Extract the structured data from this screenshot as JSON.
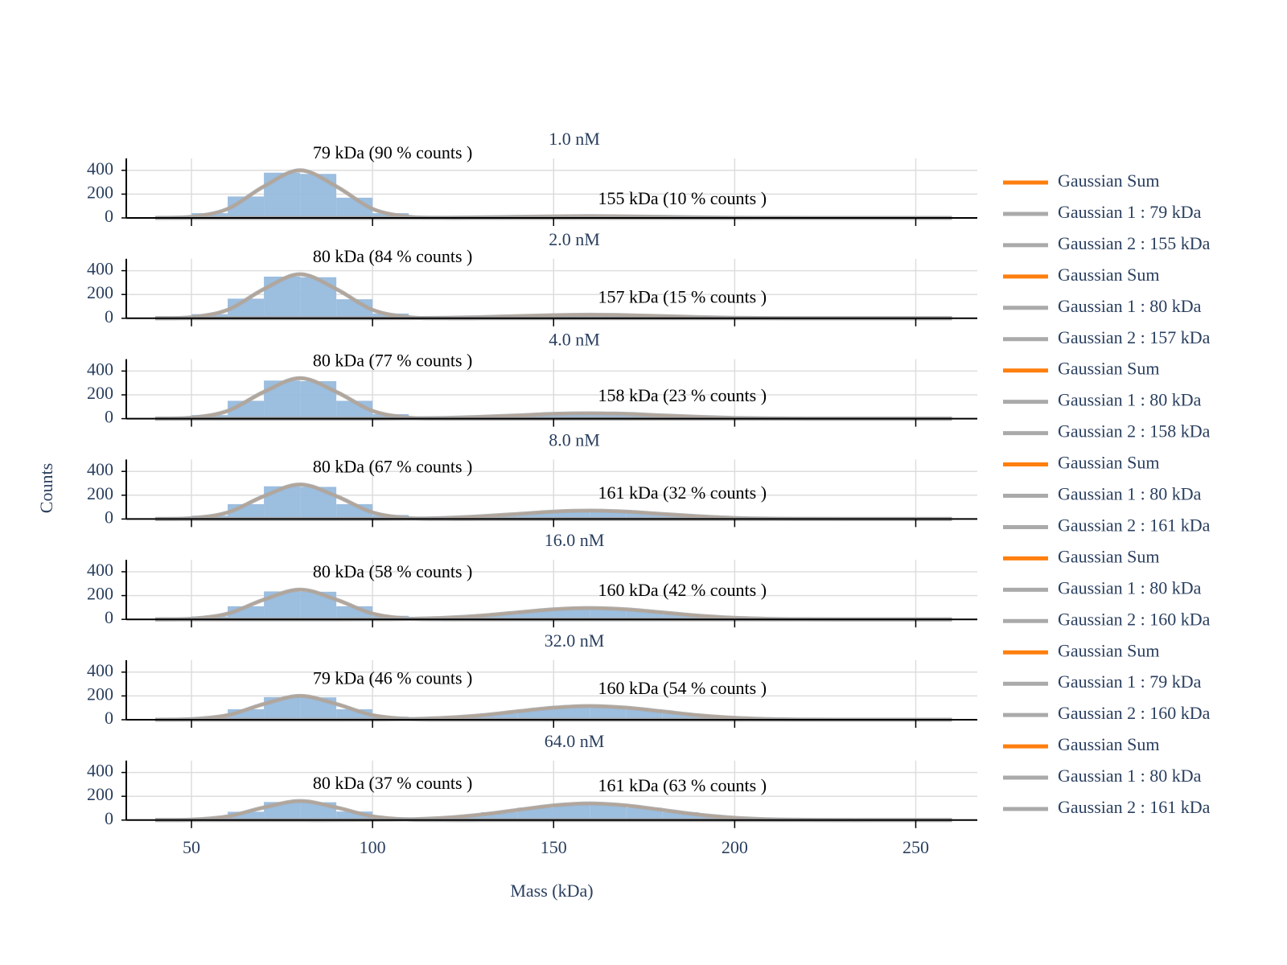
{
  "chart_data": [
    {
      "type": "histogram",
      "title": "1.0 nM",
      "color": "#97bbdd",
      "bins": [
        40,
        50,
        60,
        70,
        80,
        90,
        100,
        110,
        120,
        130,
        140,
        150,
        160,
        170,
        180,
        190,
        200,
        210,
        220,
        230,
        240,
        250,
        260
      ],
      "counts": [
        5,
        40,
        180,
        380,
        370,
        170,
        40,
        12,
        8,
        7,
        10,
        14,
        15,
        12,
        8,
        4,
        2,
        1,
        1,
        0,
        0,
        0
      ],
      "x": [
        40,
        50,
        60,
        70,
        80,
        90,
        100,
        110,
        120,
        130,
        140,
        150,
        160,
        170,
        180,
        190,
        200,
        210,
        220,
        230,
        240,
        250,
        260
      ],
      "series": [
        {
          "name": "Gaussian Sum",
          "color": "#ff7f0e",
          "values": [
            0,
            10,
            76,
            265,
            400,
            265,
            76,
            11,
            2,
            5,
            9,
            13,
            15,
            13,
            9,
            5,
            2,
            1,
            0,
            0,
            0,
            0,
            0
          ]
        },
        {
          "name": "Gaussian 1 : 79 kDa",
          "color": "#aaaaaa",
          "values": [
            0,
            10,
            76,
            265,
            400,
            265,
            76,
            10,
            0,
            0,
            0,
            0,
            0,
            0,
            0,
            0,
            0,
            0,
            0,
            0,
            0,
            0,
            0
          ]
        },
        {
          "name": "Gaussian 2 : 155 kDa",
          "color": "#aaaaaa",
          "values": [
            0,
            0,
            0,
            0,
            0,
            0,
            0,
            1,
            2,
            5,
            9,
            13,
            15,
            13,
            9,
            5,
            2,
            1,
            0,
            0,
            0,
            0,
            0
          ]
        }
      ],
      "annotations": [
        "79 kDa (90 % counts )",
        "155 kDa (10 % counts )"
      ],
      "xlim": [
        32,
        267
      ],
      "xticks": [
        50,
        100,
        150,
        200,
        250
      ],
      "ylim": [
        0,
        500
      ],
      "yticks": [
        0,
        200,
        400
      ],
      "grid": true
    },
    {
      "type": "histogram",
      "title": "2.0 nM",
      "color": "#97bbdd",
      "bins": [
        40,
        50,
        60,
        70,
        80,
        90,
        100,
        110,
        120,
        130,
        140,
        150,
        160,
        170,
        180,
        190,
        200,
        210,
        220,
        230,
        240,
        250,
        260
      ],
      "counts": [
        4,
        35,
        165,
        350,
        345,
        160,
        40,
        12,
        9,
        14,
        22,
        29,
        28,
        22,
        14,
        7,
        3,
        1,
        1,
        0,
        0,
        0
      ],
      "x": [
        40,
        50,
        60,
        70,
        80,
        90,
        100,
        110,
        120,
        130,
        140,
        150,
        160,
        170,
        180,
        190,
        200,
        210,
        220,
        230,
        240,
        250,
        260
      ],
      "series": [
        {
          "name": "Gaussian Sum",
          "color": "#ff7f0e",
          "values": [
            0,
            9,
            71,
            245,
            370,
            245,
            71,
            10,
            4,
            10,
            18,
            26,
            30,
            26,
            18,
            10,
            4,
            1,
            0,
            0,
            0,
            0,
            0
          ]
        },
        {
          "name": "Gaussian 1 : 80 kDa",
          "color": "#aaaaaa",
          "values": [
            0,
            9,
            71,
            245,
            370,
            245,
            71,
            9,
            0,
            0,
            0,
            0,
            0,
            0,
            0,
            0,
            0,
            0,
            0,
            0,
            0,
            0,
            0
          ]
        },
        {
          "name": "Gaussian 2 : 157 kDa",
          "color": "#aaaaaa",
          "values": [
            0,
            0,
            0,
            0,
            0,
            0,
            0,
            1,
            4,
            10,
            18,
            26,
            30,
            26,
            18,
            10,
            4,
            1,
            0,
            0,
            0,
            0,
            0
          ]
        }
      ],
      "annotations": [
        "80 kDa (84 % counts )",
        "157 kDa (15 % counts )"
      ],
      "xlim": [
        32,
        267
      ],
      "xticks": [
        50,
        100,
        150,
        200,
        250
      ],
      "ylim": [
        0,
        500
      ],
      "yticks": [
        0,
        200,
        400
      ],
      "grid": true
    },
    {
      "type": "histogram",
      "title": "4.0 nM",
      "color": "#97bbdd",
      "bins": [
        40,
        50,
        60,
        70,
        80,
        90,
        100,
        110,
        120,
        130,
        140,
        150,
        160,
        170,
        180,
        190,
        200,
        210,
        220,
        230,
        240,
        250,
        260
      ],
      "counts": [
        3,
        30,
        150,
        320,
        315,
        150,
        38,
        11,
        11,
        21,
        34,
        43,
        44,
        34,
        21,
        10,
        4,
        2,
        1,
        0,
        0,
        0
      ],
      "x": [
        40,
        50,
        60,
        70,
        80,
        90,
        100,
        110,
        120,
        130,
        140,
        150,
        160,
        170,
        180,
        190,
        200,
        210,
        220,
        230,
        240,
        250,
        260
      ],
      "series": [
        {
          "name": "Gaussian Sum",
          "color": "#ff7f0e",
          "values": [
            0,
            8,
            65,
            225,
            340,
            225,
            65,
            10,
            6,
            15,
            27,
            40,
            45,
            40,
            27,
            15,
            6,
            2,
            0,
            0,
            0,
            0,
            0
          ]
        },
        {
          "name": "Gaussian 1 : 80 kDa",
          "color": "#aaaaaa",
          "values": [
            0,
            8,
            65,
            225,
            340,
            225,
            65,
            8,
            0,
            0,
            0,
            0,
            0,
            0,
            0,
            0,
            0,
            0,
            0,
            0,
            0,
            0,
            0
          ]
        },
        {
          "name": "Gaussian 2 : 158 kDa",
          "color": "#aaaaaa",
          "values": [
            0,
            0,
            0,
            0,
            0,
            0,
            0,
            2,
            6,
            15,
            27,
            40,
            45,
            40,
            27,
            15,
            6,
            2,
            0,
            0,
            0,
            0,
            0
          ]
        }
      ],
      "annotations": [
        "80 kDa (77 % counts )",
        "158 kDa (23 % counts )"
      ],
      "xlim": [
        32,
        267
      ],
      "xticks": [
        50,
        100,
        150,
        200,
        250
      ],
      "ylim": [
        0,
        500
      ],
      "yticks": [
        0,
        200,
        400
      ],
      "grid": true
    },
    {
      "type": "histogram",
      "title": "8.0 nM",
      "color": "#97bbdd",
      "ylabel": "Counts",
      "bins": [
        40,
        50,
        60,
        70,
        80,
        90,
        100,
        110,
        120,
        130,
        140,
        150,
        160,
        170,
        180,
        190,
        200,
        210,
        220,
        230,
        240,
        250,
        260
      ],
      "counts": [
        3,
        28,
        125,
        275,
        270,
        125,
        34,
        10,
        16,
        33,
        52,
        67,
        67,
        52,
        32,
        16,
        6,
        2,
        1,
        0,
        0,
        0
      ],
      "x": [
        40,
        50,
        60,
        70,
        80,
        90,
        100,
        110,
        120,
        130,
        140,
        150,
        160,
        170,
        180,
        190,
        200,
        210,
        220,
        230,
        240,
        250,
        260
      ],
      "series": [
        {
          "name": "Gaussian Sum",
          "color": "#ff7f0e",
          "values": [
            0,
            7,
            55,
            192,
            290,
            192,
            56,
            10,
            9,
            23,
            42,
            62,
            70,
            62,
            42,
            23,
            9,
            3,
            1,
            0,
            0,
            0,
            0
          ]
        },
        {
          "name": "Gaussian 1 : 80 kDa",
          "color": "#aaaaaa",
          "values": [
            0,
            7,
            55,
            192,
            290,
            192,
            55,
            7,
            0,
            0,
            0,
            0,
            0,
            0,
            0,
            0,
            0,
            0,
            0,
            0,
            0,
            0,
            0
          ]
        },
        {
          "name": "Gaussian 2 : 161 kDa",
          "color": "#aaaaaa",
          "values": [
            0,
            0,
            0,
            0,
            0,
            0,
            1,
            3,
            9,
            23,
            42,
            62,
            70,
            62,
            42,
            23,
            9,
            3,
            1,
            0,
            0,
            0,
            0
          ]
        }
      ],
      "annotations": [
        "80 kDa (67 % counts )",
        "161 kDa (32 % counts )"
      ],
      "xlim": [
        32,
        267
      ],
      "xticks": [
        50,
        100,
        150,
        200,
        250
      ],
      "ylim": [
        0,
        500
      ],
      "yticks": [
        0,
        200,
        400
      ],
      "grid": true
    },
    {
      "type": "histogram",
      "title": "16.0 nM",
      "color": "#97bbdd",
      "bins": [
        40,
        50,
        60,
        70,
        80,
        90,
        100,
        110,
        120,
        130,
        140,
        150,
        160,
        170,
        180,
        190,
        200,
        210,
        220,
        230,
        240,
        250,
        260
      ],
      "counts": [
        2,
        25,
        110,
        235,
        232,
        110,
        30,
        11,
        22,
        44,
        71,
        90,
        90,
        71,
        44,
        22,
        8,
        3,
        1,
        0,
        0,
        0
      ],
      "x": [
        40,
        50,
        60,
        70,
        80,
        90,
        100,
        110,
        120,
        130,
        140,
        150,
        160,
        170,
        180,
        190,
        200,
        210,
        220,
        230,
        240,
        250,
        260
      ],
      "series": [
        {
          "name": "Gaussian Sum",
          "color": "#ff7f0e",
          "values": [
            0,
            6,
            48,
            166,
            250,
            166,
            49,
            10,
            13,
            31,
            58,
            84,
            95,
            84,
            58,
            31,
            13,
            4,
            1,
            0,
            0,
            0,
            0
          ]
        },
        {
          "name": "Gaussian 1 : 80 kDa",
          "color": "#aaaaaa",
          "values": [
            0,
            6,
            48,
            166,
            250,
            166,
            48,
            6,
            0,
            0,
            0,
            0,
            0,
            0,
            0,
            0,
            0,
            0,
            0,
            0,
            0,
            0,
            0
          ]
        },
        {
          "name": "Gaussian 2 : 160 kDa",
          "color": "#aaaaaa",
          "values": [
            0,
            0,
            0,
            0,
            0,
            0,
            1,
            4,
            13,
            31,
            58,
            84,
            95,
            84,
            58,
            31,
            13,
            4,
            1,
            0,
            0,
            0,
            0
          ]
        }
      ],
      "annotations": [
        "80 kDa (58 % counts )",
        "160 kDa (42 % counts )"
      ],
      "xlim": [
        32,
        267
      ],
      "xticks": [
        50,
        100,
        150,
        200,
        250
      ],
      "ylim": [
        0,
        500
      ],
      "yticks": [
        0,
        200,
        400
      ],
      "grid": true
    },
    {
      "type": "histogram",
      "title": "32.0 nM",
      "color": "#97bbdd",
      "bins": [
        40,
        50,
        60,
        70,
        80,
        90,
        100,
        110,
        120,
        130,
        140,
        150,
        160,
        170,
        180,
        190,
        200,
        210,
        220,
        230,
        240,
        250,
        260
      ],
      "counts": [
        2,
        20,
        88,
        190,
        188,
        88,
        26,
        13,
        27,
        54,
        86,
        108,
        108,
        86,
        54,
        27,
        10,
        4,
        1,
        0,
        0,
        0
      ],
      "x": [
        40,
        50,
        60,
        70,
        80,
        90,
        100,
        110,
        120,
        130,
        140,
        150,
        160,
        170,
        180,
        190,
        200,
        210,
        220,
        230,
        240,
        250,
        260
      ],
      "series": [
        {
          "name": "Gaussian Sum",
          "color": "#ff7f0e",
          "values": [
            0,
            5,
            38,
            132,
            200,
            132,
            39,
            10,
            16,
            37,
            70,
            101,
            115,
            101,
            70,
            37,
            16,
            5,
            1,
            0,
            0,
            0,
            0
          ]
        },
        {
          "name": "Gaussian 1 : 79 kDa",
          "color": "#aaaaaa",
          "values": [
            0,
            5,
            38,
            132,
            200,
            132,
            38,
            5,
            0,
            0,
            0,
            0,
            0,
            0,
            0,
            0,
            0,
            0,
            0,
            0,
            0,
            0,
            0
          ]
        },
        {
          "name": "Gaussian 2 : 160 kDa",
          "color": "#aaaaaa",
          "values": [
            0,
            0,
            0,
            0,
            0,
            0,
            1,
            5,
            16,
            37,
            70,
            101,
            115,
            101,
            70,
            37,
            16,
            5,
            1,
            0,
            0,
            0,
            0
          ]
        }
      ],
      "annotations": [
        "79 kDa (46 % counts )",
        "160 kDa (54 % counts )"
      ],
      "xlim": [
        32,
        267
      ],
      "xticks": [
        50,
        100,
        150,
        200,
        250
      ],
      "ylim": [
        0,
        500
      ],
      "yticks": [
        0,
        200,
        400
      ],
      "grid": true
    },
    {
      "type": "histogram",
      "title": "64.0 nM",
      "color": "#97bbdd",
      "xlabel": "Mass (kDa)",
      "bins": [
        40,
        50,
        60,
        70,
        80,
        90,
        100,
        110,
        120,
        130,
        140,
        150,
        160,
        170,
        180,
        190,
        200,
        210,
        220,
        230,
        240,
        250,
        260
      ],
      "counts": [
        2,
        16,
        70,
        152,
        150,
        72,
        24,
        14,
        32,
        66,
        104,
        132,
        132,
        104,
        66,
        32,
        12,
        4,
        1,
        0,
        0,
        0
      ],
      "x": [
        40,
        50,
        60,
        70,
        80,
        90,
        100,
        110,
        120,
        130,
        140,
        150,
        160,
        170,
        180,
        190,
        200,
        210,
        220,
        230,
        240,
        250,
        260
      ],
      "series": [
        {
          "name": "Gaussian Sum",
          "color": "#ff7f0e",
          "values": [
            0,
            4,
            31,
            106,
            160,
            106,
            33,
            10,
            19,
            46,
            85,
            123,
            140,
            123,
            85,
            46,
            19,
            6,
            2,
            0,
            0,
            0,
            0
          ]
        },
        {
          "name": "Gaussian 1 : 80 kDa",
          "color": "#aaaaaa",
          "values": [
            0,
            4,
            31,
            106,
            160,
            106,
            31,
            4,
            0,
            0,
            0,
            0,
            0,
            0,
            0,
            0,
            0,
            0,
            0,
            0,
            0,
            0,
            0
          ]
        },
        {
          "name": "Gaussian 2 : 161 kDa",
          "color": "#aaaaaa",
          "values": [
            0,
            0,
            0,
            0,
            0,
            0,
            2,
            6,
            19,
            46,
            85,
            123,
            140,
            123,
            85,
            46,
            19,
            6,
            2,
            0,
            0,
            0,
            0
          ]
        }
      ],
      "annotations": [
        "80 kDa (37 % counts )",
        "161 kDa (63 % counts )"
      ],
      "xlim": [
        32,
        267
      ],
      "xticks": [
        50,
        100,
        150,
        200,
        250
      ],
      "ylim": [
        0,
        500
      ],
      "yticks": [
        0,
        200,
        400
      ],
      "grid": true
    }
  ]
}
